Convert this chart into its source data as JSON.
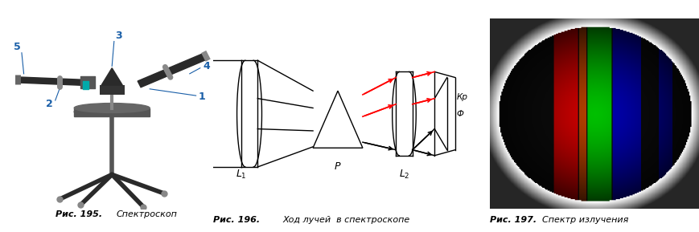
{
  "fig_width": 8.7,
  "fig_height": 2.89,
  "dpi": 100,
  "bg_color": "#ffffff",
  "caption1": "Рис. 195.",
  "caption1_sub": "Спектроскоп",
  "caption2": "Рис. 196.",
  "caption2_sub": "Ход лучей  в спектроскопе",
  "caption3": "Рис. 197.",
  "caption3_sub": "Спектр излучения",
  "label_color": "#1a5fa8"
}
